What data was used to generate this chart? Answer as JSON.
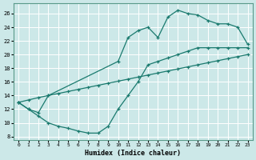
{
  "bg_color": "#cce8e8",
  "grid_color": "#ffffff",
  "line_color": "#1a7a6e",
  "xlabel": "Humidex (Indice chaleur)",
  "xlim": [
    -0.5,
    23.5
  ],
  "ylim": [
    7.5,
    27.5
  ],
  "yticks": [
    8,
    10,
    12,
    14,
    16,
    18,
    20,
    22,
    24,
    26
  ],
  "xticks": [
    0,
    1,
    2,
    3,
    4,
    5,
    6,
    7,
    8,
    9,
    10,
    11,
    12,
    13,
    14,
    15,
    16,
    17,
    18,
    19,
    20,
    21,
    22,
    23
  ],
  "line_diag": {
    "x": [
      0,
      1,
      2,
      3,
      4,
      5,
      6,
      7,
      8,
      9,
      10,
      11,
      12,
      13,
      14,
      15,
      16,
      17,
      18,
      19,
      20,
      21,
      22,
      23
    ],
    "y": [
      13.0,
      13.35,
      13.7,
      14.0,
      14.3,
      14.6,
      14.9,
      15.2,
      15.5,
      15.8,
      16.1,
      16.4,
      16.7,
      17.0,
      17.3,
      17.6,
      17.9,
      18.2,
      18.5,
      18.8,
      19.1,
      19.4,
      19.7,
      20.0
    ]
  },
  "line_upper": {
    "x": [
      0,
      1,
      2,
      3,
      10,
      11,
      12,
      13,
      14,
      15,
      16,
      17,
      18,
      19,
      20,
      21,
      22,
      23
    ],
    "y": [
      13.0,
      12.0,
      11.5,
      14.0,
      19.0,
      22.5,
      23.5,
      24.0,
      22.5,
      25.5,
      26.5,
      26.0,
      25.8,
      25.0,
      24.5,
      24.5,
      24.0,
      21.5
    ]
  },
  "line_dip": {
    "x": [
      0,
      1,
      2,
      3,
      4,
      5,
      6,
      7,
      8,
      9,
      10,
      11,
      12,
      13,
      14,
      15,
      16,
      17,
      18,
      19,
      20,
      21,
      22,
      23
    ],
    "y": [
      13.0,
      12.0,
      11.0,
      10.0,
      9.5,
      9.2,
      8.8,
      8.5,
      8.5,
      9.5,
      12.0,
      14.0,
      16.0,
      18.5,
      19.0,
      19.5,
      20.0,
      20.5,
      21.0,
      21.0,
      21.0,
      21.0,
      21.0,
      21.0
    ]
  }
}
